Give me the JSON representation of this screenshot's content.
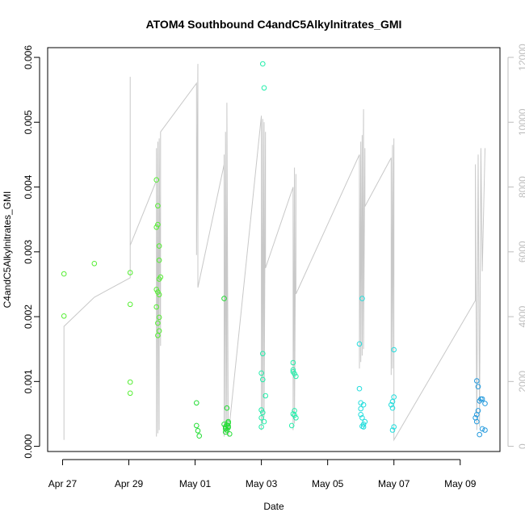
{
  "chart_data": {
    "type": "scatter",
    "title": "ATOM4 Southbound C4andC5Alkylnitrates_GMI",
    "xlabel": "Date",
    "ylabel": "C4andC5Alkylnitrates_GMI",
    "x_ticks": [
      "Apr 27",
      "Apr 29",
      "May 01",
      "May 03",
      "May 05",
      "May 07",
      "May 09"
    ],
    "y_ticks": [
      "0.000",
      "0.001",
      "0.002",
      "0.003",
      "0.004",
      "0.005",
      "0.006"
    ],
    "y2_ticks": [
      "0",
      "2000",
      "4000",
      "6000",
      "8000",
      "10000",
      "12000"
    ],
    "xlim_days_from_apr27": [
      -0.45,
      13.2
    ],
    "ylim": [
      -8e-05,
      0.00615
    ],
    "y2lim": [
      -160,
      12300
    ],
    "colors": {
      "points_green": "#33dd33",
      "points_cyan": "#22dddd",
      "points_blue": "#2299dd",
      "line": "#c8c8c8",
      "right_axis": "#bdbdbd"
    },
    "series": [
      {
        "color": "#55ee33",
        "points": [
          [
            "Apr 27 01:00",
            0.00266
          ],
          [
            "Apr 27 01:00",
            0.00201
          ],
          [
            "Apr 27 23:00",
            0.00282
          ],
          [
            "Apr 29 01:00",
            0.00268
          ],
          [
            "Apr 29 01:00",
            0.00219
          ],
          [
            "Apr 29 01:00",
            0.00099
          ],
          [
            "Apr 29 01:00",
            0.00082
          ],
          [
            "Apr 29 20:00",
            0.00411
          ],
          [
            "Apr 29 20:00",
            0.00338
          ],
          [
            "Apr 29 20:00",
            0.00242
          ],
          [
            "Apr 29 20:00",
            0.00215
          ],
          [
            "Apr 29 21:00",
            0.00371
          ],
          [
            "Apr 29 21:00",
            0.00342
          ],
          [
            "Apr 29 21:00",
            0.00238
          ],
          [
            "Apr 29 21:00",
            0.0019
          ],
          [
            "Apr 29 22:00",
            0.00309
          ],
          [
            "Apr 29 22:00",
            0.00287
          ],
          [
            "Apr 29 22:00",
            0.00258
          ],
          [
            "Apr 29 22:00",
            0.00234
          ],
          [
            "Apr 29 22:00",
            0.00199
          ],
          [
            "Apr 29 22:00",
            0.00178
          ],
          [
            "Apr 29 21:00",
            0.00171
          ],
          [
            "Apr 29 23:00",
            0.00261
          ]
        ]
      },
      {
        "color": "#22dd33",
        "points": [
          [
            "May 01 01:00",
            0.00067
          ],
          [
            "May 01 01:00",
            0.00032
          ],
          [
            "May 01 02:00",
            0.00024
          ],
          [
            "May 01 03:00",
            0.00016
          ],
          [
            "May 01 21:00",
            0.00228
          ],
          [
            "May 01 21:00",
            0.00034
          ],
          [
            "May 01 22:00",
            0.0003
          ],
          [
            "May 01 22:00",
            0.00027
          ],
          [
            "May 01 23:00",
            0.00033
          ],
          [
            "May 01 23:00",
            0.00025
          ],
          [
            "May 02 00:00",
            0.00029
          ],
          [
            "May 02 00:00",
            0.00031
          ],
          [
            "May 02 00:00",
            0.00036
          ],
          [
            "May 02 00:00",
            0.00038
          ],
          [
            "May 01 23:00",
            0.00059
          ],
          [
            "May 01 22:00",
            0.00022
          ],
          [
            "May 02 01:00",
            0.00019
          ]
        ]
      },
      {
        "color": "#22eeaa",
        "points": [
          [
            "May 03 01:00",
            0.0059
          ],
          [
            "May 03 02:00",
            0.00553
          ],
          [
            "May 03 01:00",
            0.00143
          ],
          [
            "May 03 00:00",
            0.00113
          ],
          [
            "May 03 01:00",
            0.00103
          ],
          [
            "May 03 03:00",
            0.00078
          ],
          [
            "May 03 00:00",
            0.00056
          ],
          [
            "May 03 01:00",
            0.00052
          ],
          [
            "May 03 00:00",
            0.00044
          ],
          [
            "May 03 02:00",
            0.00038
          ],
          [
            "May 03 00:00",
            0.0003
          ],
          [
            "May 03 23:00",
            0.00129
          ],
          [
            "May 03 23:00",
            0.00118
          ],
          [
            "May 03 23:00",
            0.00115
          ],
          [
            "May 04 00:00",
            0.00112
          ],
          [
            "May 04 01:00",
            0.00108
          ],
          [
            "May 03 23:00",
            0.0005
          ],
          [
            "May 04 00:00",
            0.00055
          ],
          [
            "May 04 01:00",
            0.00044
          ],
          [
            "May 04 00:00",
            0.00048
          ],
          [
            "May 03 22:00",
            0.00032
          ]
        ]
      },
      {
        "color": "#22dddd",
        "points": [
          [
            "May 06 01:00",
            0.00228
          ],
          [
            "May 05 23:00",
            0.00158
          ],
          [
            "May 05 23:00",
            0.00089
          ],
          [
            "May 06 00:00",
            0.00067
          ],
          [
            "May 06 00:00",
            0.00058
          ],
          [
            "May 06 02:00",
            0.00064
          ],
          [
            "May 06 00:00",
            0.00049
          ],
          [
            "May 06 01:00",
            0.00044
          ],
          [
            "May 06 03:00",
            0.00038
          ],
          [
            "May 06 02:00",
            0.00034
          ],
          [
            "May 06 01:00",
            0.00031
          ],
          [
            "May 06 02:00",
            0.0003
          ],
          [
            "May 06 22:00",
            0.00064
          ],
          [
            "May 06 23:00",
            0.00069
          ],
          [
            "May 06 23:00",
            0.00059
          ],
          [
            "May 07 00:00",
            0.00076
          ],
          [
            "May 07 00:00",
            0.00149
          ],
          [
            "May 07 00:00",
            0.0003
          ],
          [
            "May 06 23:00",
            0.00025
          ]
        ]
      },
      {
        "color": "#2299dd",
        "points": [
          [
            "May 09 12:00",
            0.00101
          ],
          [
            "May 09 13:00",
            0.00092
          ],
          [
            "May 09 15:00",
            0.00073
          ],
          [
            "May 09 16:00",
            0.00073
          ],
          [
            "May 09 14:00",
            0.0007
          ],
          [
            "May 09 18:00",
            0.00066
          ],
          [
            "May 09 13:00",
            0.00055
          ],
          [
            "May 09 12:00",
            0.00049
          ],
          [
            "May 09 11:00",
            0.00044
          ],
          [
            "May 09 12:00",
            0.00038
          ],
          [
            "May 09 16:00",
            0.00027
          ],
          [
            "May 09 18:00",
            0.00025
          ],
          [
            "May 09 14:00",
            0.00018
          ]
        ]
      }
    ],
    "altitude_line": [
      [
        "Apr 27 01:00",
        200
      ],
      [
        "Apr 27 01:00",
        3700
      ],
      [
        "Apr 27 23:00",
        4600
      ],
      [
        "Apr 29 01:00",
        5200
      ],
      [
        "Apr 29 01:00",
        11400
      ],
      [
        "Apr 29 01:00",
        9200
      ],
      [
        "Apr 29 01:00",
        6200
      ],
      [
        "Apr 29 20:00",
        8200
      ],
      [
        "Apr 29 20:00",
        300
      ],
      [
        "Apr 29 20:00",
        9200
      ],
      [
        "Apr 29 21:00",
        400
      ],
      [
        "Apr 29 21:00",
        9400
      ],
      [
        "Apr 29 22:00",
        500
      ],
      [
        "Apr 29 22:00",
        9500
      ],
      [
        "Apr 29 23:00",
        3100
      ],
      [
        "Apr 29 23:00",
        9700
      ],
      [
        "May 01 01:00",
        11200
      ],
      [
        "May 01 01:00",
        5900
      ],
      [
        "May 01 02:00",
        11800
      ],
      [
        "May 01 02:00",
        4900
      ],
      [
        "May 01 21:00",
        8700
      ],
      [
        "May 01 21:00",
        300
      ],
      [
        "May 01 21:00",
        9000
      ],
      [
        "May 01 22:00",
        400
      ],
      [
        "May 01 22:00",
        9700
      ],
      [
        "May 01 23:00",
        500
      ],
      [
        "May 01 23:00",
        10600
      ],
      [
        "May 02 00:00",
        300
      ],
      [
        "May 03 00:00",
        10200
      ],
      [
        "May 03 00:00",
        500
      ],
      [
        "May 03 01:00",
        10100
      ],
      [
        "May 03 01:00",
        700
      ],
      [
        "May 03 02:00",
        10000
      ],
      [
        "May 03 02:00",
        900
      ],
      [
        "May 03 03:00",
        9700
      ],
      [
        "May 03 03:00",
        5500
      ],
      [
        "May 03 23:00",
        8000
      ],
      [
        "May 03 23:00",
        500
      ],
      [
        "May 04 00:00",
        8600
      ],
      [
        "May 04 00:00",
        700
      ],
      [
        "May 04 01:00",
        8400
      ],
      [
        "May 04 01:00",
        4700
      ],
      [
        "May 05 23:00",
        9000
      ],
      [
        "May 05 23:00",
        2400
      ],
      [
        "May 06 00:00",
        9400
      ],
      [
        "May 06 00:00",
        2600
      ],
      [
        "May 06 01:00",
        9600
      ],
      [
        "May 06 01:00",
        2800
      ],
      [
        "May 06 02:00",
        10400
      ],
      [
        "May 06 02:00",
        3000
      ],
      [
        "May 06 03:00",
        9200
      ],
      [
        "May 06 03:00",
        7400
      ],
      [
        "May 06 22:00",
        8900
      ],
      [
        "May 06 22:00",
        2200
      ],
      [
        "May 06 23:00",
        9300
      ],
      [
        "May 06 23:00",
        2400
      ],
      [
        "May 07 00:00",
        9500
      ],
      [
        "May 07 00:00",
        200
      ],
      [
        "May 09 11:00",
        4500
      ],
      [
        "May 09 11:00",
        8700
      ],
      [
        "May 09 12:00",
        500
      ],
      [
        "May 09 13:00",
        9000
      ],
      [
        "May 09 14:00",
        600
      ],
      [
        "May 09 15:00",
        9200
      ],
      [
        "May 09 16:00",
        5400
      ],
      [
        "May 09 18:00",
        9200
      ]
    ]
  }
}
